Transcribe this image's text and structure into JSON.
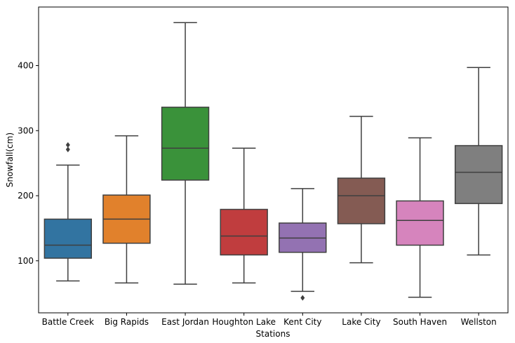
{
  "chart_data": {
    "type": "box",
    "xlabel": "Stations",
    "ylabel": "Snowfall(cm)",
    "ylim": [
      20,
      490
    ],
    "yticks": [
      100,
      200,
      300,
      400
    ],
    "grid": false,
    "legend": "none",
    "categories": [
      "Battle Creek",
      "Big Rapids",
      "East Jordan",
      "Houghton Lake",
      "Kent City",
      "Lake City",
      "South Haven",
      "Wellston"
    ],
    "boxes": [
      {
        "whisker_low": 69,
        "q1": 104,
        "median": 124,
        "q3": 164,
        "whisker_high": 247,
        "outliers": [
          271,
          278
        ],
        "color": "#3274a1"
      },
      {
        "whisker_low": 66,
        "q1": 127,
        "median": 164,
        "q3": 201,
        "whisker_high": 292,
        "outliers": [],
        "color": "#e1812c"
      },
      {
        "whisker_low": 64,
        "q1": 224,
        "median": 273,
        "q3": 336,
        "whisker_high": 466,
        "outliers": [],
        "color": "#3a923a"
      },
      {
        "whisker_low": 66,
        "q1": 109,
        "median": 138,
        "q3": 179,
        "whisker_high": 273,
        "outliers": [],
        "color": "#c03d3e"
      },
      {
        "whisker_low": 53,
        "q1": 113,
        "median": 135,
        "q3": 158,
        "whisker_high": 211,
        "outliers": [
          43
        ],
        "color": "#9372b2"
      },
      {
        "whisker_low": 97,
        "q1": 157,
        "median": 200,
        "q3": 227,
        "whisker_high": 322,
        "outliers": [],
        "color": "#845b53"
      },
      {
        "whisker_low": 44,
        "q1": 124,
        "median": 162,
        "q3": 192,
        "whisker_high": 289,
        "outliers": [],
        "color": "#d684bd"
      },
      {
        "whisker_low": 109,
        "q1": 188,
        "median": 236,
        "q3": 277,
        "whisker_high": 397,
        "outliers": [],
        "color": "#7f7f7f"
      }
    ]
  }
}
